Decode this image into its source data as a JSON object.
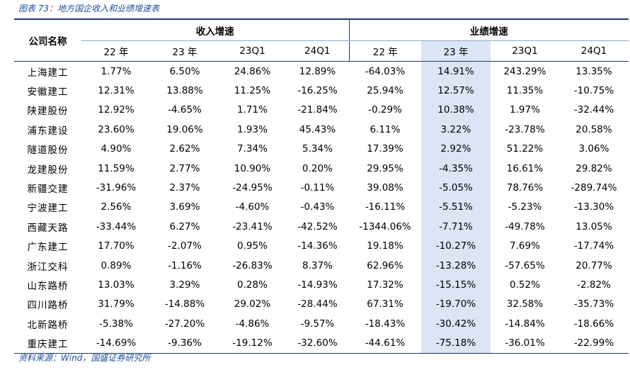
{
  "title": "图表 73：地方国企收入和业绩增速表",
  "table": {
    "company_header": "公司名称",
    "groups": [
      "收入增速",
      "业绩增速"
    ],
    "subheaders": [
      "22 年",
      "23 年",
      "23Q1",
      "24Q1",
      "22 年",
      "23 年",
      "23Q1",
      "24Q1"
    ],
    "rows": [
      [
        "上海建工",
        "1.77%",
        "6.50%",
        "24.86%",
        "12.89%",
        "-64.03%",
        "14.91%",
        "243.29%",
        "13.35%"
      ],
      [
        "安徽建工",
        "12.31%",
        "13.88%",
        "11.25%",
        "-16.25%",
        "25.94%",
        "12.57%",
        "11.35%",
        "-10.75%"
      ],
      [
        "陕建股份",
        "12.92%",
        "-4.65%",
        "1.71%",
        "-21.84%",
        "-0.29%",
        "10.38%",
        "1.97%",
        "-32.44%"
      ],
      [
        "浦东建设",
        "23.60%",
        "19.06%",
        "1.93%",
        "45.43%",
        "6.11%",
        "3.22%",
        "-23.78%",
        "20.58%"
      ],
      [
        "隧道股份",
        "4.90%",
        "2.62%",
        "7.34%",
        "5.34%",
        "17.39%",
        "2.92%",
        "51.22%",
        "3.06%"
      ],
      [
        "龙建股份",
        "11.59%",
        "2.77%",
        "10.90%",
        "0.20%",
        "29.95%",
        "-4.35%",
        "16.61%",
        "29.82%"
      ],
      [
        "新疆交建",
        "-31.96%",
        "2.37%",
        "-24.95%",
        "-0.11%",
        "39.08%",
        "-5.05%",
        "78.76%",
        "-289.74%"
      ],
      [
        "宁波建工",
        "2.56%",
        "3.69%",
        "-4.60%",
        "-0.43%",
        "-16.11%",
        "-5.51%",
        "-5.23%",
        "-13.30%"
      ],
      [
        "西藏天路",
        "-33.44%",
        "6.27%",
        "-23.41%",
        "-42.52%",
        "-1344.06%",
        "-7.71%",
        "-49.78%",
        "13.05%"
      ],
      [
        "广东建工",
        "17.70%",
        "-2.07%",
        "0.95%",
        "-14.36%",
        "19.18%",
        "-10.27%",
        "7.69%",
        "-17.74%"
      ],
      [
        "浙江交科",
        "0.89%",
        "-1.16%",
        "-26.83%",
        "8.37%",
        "62.96%",
        "-13.28%",
        "-57.65%",
        "20.77%"
      ],
      [
        "山东路桥",
        "13.03%",
        "3.29%",
        "0.28%",
        "-14.93%",
        "17.32%",
        "-15.15%",
        "0.52%",
        "-2.82%"
      ],
      [
        "四川路桥",
        "31.79%",
        "-14.88%",
        "29.02%",
        "-28.44%",
        "67.31%",
        "-19.70%",
        "32.58%",
        "-35.73%"
      ],
      [
        "北新路桥",
        "-5.38%",
        "-27.20%",
        "-4.86%",
        "-9.57%",
        "-18.43%",
        "-30.42%",
        "-14.84%",
        "-18.66%"
      ],
      [
        "重庆建工",
        "-14.69%",
        "-9.36%",
        "-19.12%",
        "-32.60%",
        "-44.61%",
        "-75.18%",
        "-36.01%",
        "-22.99%"
      ]
    ]
  },
  "source": "资料来源：Wind，国盛证券研究所"
}
